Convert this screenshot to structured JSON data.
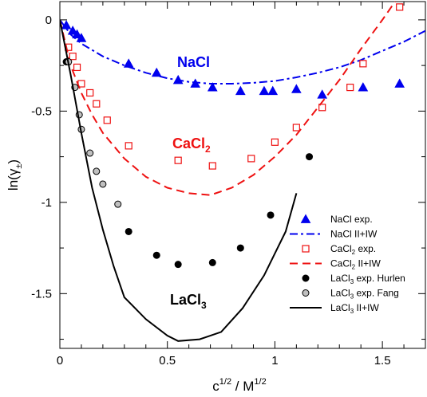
{
  "colors": {
    "nacl": "#0000ee",
    "cacl2": "#ee1111",
    "lacl3": "#000000",
    "fang_fill": "#c0c0c0"
  },
  "chart_data": {
    "type": "scatter",
    "xlim": [
      0,
      1.7
    ],
    "ylim": [
      -1.8,
      0.1
    ],
    "xticks": [
      0,
      0.5,
      1,
      1.5
    ],
    "yticks": [
      0,
      -0.5,
      -1,
      -1.5
    ],
    "x_tick_labels": [
      "0",
      "0.5",
      "1",
      "1.5"
    ],
    "y_tick_labels": [
      "0",
      "-0.5",
      "-1",
      "-1.5"
    ],
    "xlabel": {
      "main": "c",
      "sup1": "1/2",
      "mid": " / M",
      "sup2": "1/2"
    },
    "ylabel": {
      "pre": "ln(γ",
      "sub": "±",
      "post": ")"
    },
    "grid": false,
    "legend_position": "bottom-right",
    "annotations": [
      {
        "id": "nacl",
        "text": "NaCl",
        "sub": "",
        "color": "nacl"
      },
      {
        "id": "cacl2",
        "text": "CaCl",
        "sub": "2",
        "color": "cacl2"
      },
      {
        "id": "lacl3",
        "text": "LaCl",
        "sub": "3",
        "color": "lacl3"
      }
    ],
    "series": [
      {
        "id": "nacl_exp",
        "legend": {
          "main": "NaCl exp.",
          "sub": "",
          "tail": ""
        },
        "kind": "marker",
        "marker": "triangle",
        "color": "nacl",
        "x": [
          0.03,
          0.06,
          0.08,
          0.1,
          0.32,
          0.45,
          0.55,
          0.63,
          0.71,
          0.84,
          0.95,
          0.99,
          1.1,
          1.22,
          1.41,
          1.58
        ],
        "y": [
          -0.03,
          -0.06,
          -0.08,
          -0.1,
          -0.24,
          -0.29,
          -0.33,
          -0.35,
          -0.37,
          -0.39,
          -0.39,
          -0.39,
          -0.38,
          -0.41,
          -0.37,
          -0.35
        ]
      },
      {
        "id": "nacl_model",
        "legend": {
          "main": "NaCl II+IW",
          "sub": "",
          "tail": ""
        },
        "kind": "line",
        "dash": "dashdot",
        "color": "nacl",
        "x": [
          0,
          0.05,
          0.1,
          0.2,
          0.3,
          0.4,
          0.5,
          0.6,
          0.7,
          0.8,
          0.9,
          1.0,
          1.1,
          1.2,
          1.3,
          1.4,
          1.5,
          1.6,
          1.7
        ],
        "y": [
          0,
          -0.08,
          -0.13,
          -0.2,
          -0.25,
          -0.29,
          -0.32,
          -0.34,
          -0.35,
          -0.35,
          -0.345,
          -0.335,
          -0.315,
          -0.29,
          -0.26,
          -0.22,
          -0.17,
          -0.12,
          -0.06
        ]
      },
      {
        "id": "cacl2_exp",
        "legend": {
          "main": "CaCl",
          "sub": "2",
          "tail": " exp."
        },
        "kind": "marker",
        "marker": "open-square",
        "color": "cacl2",
        "x": [
          0.04,
          0.06,
          0.08,
          0.1,
          0.14,
          0.17,
          0.22,
          0.32,
          0.55,
          0.71,
          0.89,
          1.0,
          1.1,
          1.22,
          1.35,
          1.41,
          1.58
        ],
        "y": [
          -0.15,
          -0.2,
          -0.26,
          -0.35,
          -0.4,
          -0.46,
          -0.55,
          -0.69,
          -0.77,
          -0.8,
          -0.76,
          -0.67,
          -0.59,
          -0.48,
          -0.37,
          -0.24,
          0.07
        ]
      },
      {
        "id": "cacl2_model",
        "legend": {
          "main": "CaCl",
          "sub": "2",
          "tail": " II+IW"
        },
        "kind": "line",
        "dash": "dashed",
        "color": "cacl2",
        "x": [
          0,
          0.05,
          0.1,
          0.15,
          0.2,
          0.3,
          0.4,
          0.5,
          0.6,
          0.7,
          0.8,
          0.9,
          1.0,
          1.1,
          1.2,
          1.3,
          1.4,
          1.5,
          1.6,
          1.7
        ],
        "y": [
          0,
          -0.25,
          -0.4,
          -0.52,
          -0.62,
          -0.76,
          -0.86,
          -0.92,
          -0.95,
          -0.96,
          -0.92,
          -0.85,
          -0.75,
          -0.63,
          -0.48,
          -0.33,
          -0.16,
          0.0,
          0.17,
          0.33
        ]
      },
      {
        "id": "lacl3_hurlen",
        "legend": {
          "main": "LaCl",
          "sub": "3",
          "tail": " exp. Hurlen"
        },
        "kind": "marker",
        "marker": "filled-circle",
        "color": "lacl3",
        "x": [
          0.03,
          0.32,
          0.45,
          0.55,
          0.71,
          0.84,
          0.98,
          1.16
        ],
        "y": [
          -0.23,
          -1.16,
          -1.29,
          -1.34,
          -1.33,
          -1.25,
          -1.07,
          -0.75
        ]
      },
      {
        "id": "lacl3_fang",
        "legend": {
          "main": "LaCl",
          "sub": "3",
          "tail": " exp. Fang"
        },
        "kind": "marker",
        "marker": "gray-circle",
        "color": "lacl3",
        "x": [
          0.04,
          0.07,
          0.09,
          0.1,
          0.14,
          0.17,
          0.2,
          0.27
        ],
        "y": [
          -0.23,
          -0.37,
          -0.52,
          -0.6,
          -0.73,
          -0.83,
          -0.9,
          -1.01
        ]
      },
      {
        "id": "lacl3_model",
        "legend": {
          "main": "LaCl",
          "sub": "3",
          "tail": " II+IW"
        },
        "kind": "line",
        "dash": "solid",
        "color": "lacl3",
        "x": [
          0,
          0.05,
          0.1,
          0.15,
          0.2,
          0.25,
          0.3,
          0.4,
          0.5,
          0.55,
          0.65,
          0.75,
          0.85,
          0.95,
          1.05,
          1.1
        ],
        "y": [
          0,
          -0.3,
          -0.62,
          -0.92,
          -1.15,
          -1.35,
          -1.52,
          -1.64,
          -1.73,
          -1.76,
          -1.75,
          -1.71,
          -1.58,
          -1.4,
          -1.16,
          -0.95
        ]
      }
    ]
  }
}
